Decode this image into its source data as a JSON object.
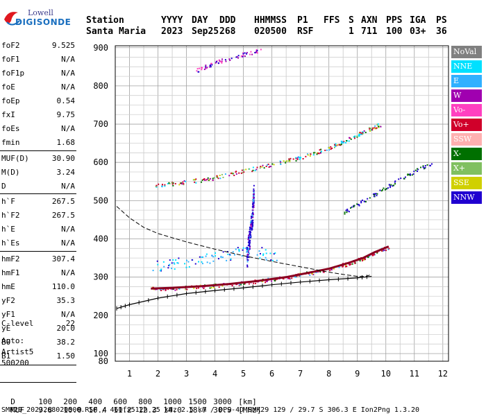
{
  "logo": {
    "brand": "Lowell",
    "name": "DIGISONDE"
  },
  "header": {
    "labels": [
      "Station",
      "YYYY",
      "DAY",
      "DDD",
      "HHMMSS",
      "P1",
      "FFS",
      "S",
      "AXN",
      "PPS",
      "IGA",
      "PS"
    ],
    "values": [
      "Santa Maria",
      "2023",
      "Sep25",
      "268",
      "020500",
      "RSF",
      "1",
      "711",
      "100",
      "03+",
      "36"
    ]
  },
  "params": [
    {
      "name": "foF2",
      "value": "9.525"
    },
    {
      "name": "foF1",
      "value": "N/A"
    },
    {
      "name": "foF1p",
      "value": "N/A"
    },
    {
      "name": "foE",
      "value": "N/A"
    },
    {
      "name": "foEp",
      "value": "0.54"
    },
    {
      "name": "fxI",
      "value": "9.75"
    },
    {
      "name": "foEs",
      "value": "N/A"
    },
    {
      "name": "fmin",
      "value": "1.68"
    },
    {
      "name": "MUF(D)",
      "value": "30.90"
    },
    {
      "name": "M(D)",
      "value": "3.24"
    },
    {
      "name": "D",
      "value": "N/A"
    },
    {
      "name": "h`F",
      "value": "267.5"
    },
    {
      "name": "h`F2",
      "value": "267.5"
    },
    {
      "name": "h`E",
      "value": "N/A"
    },
    {
      "name": "h`Es",
      "value": "N/A"
    },
    {
      "name": "hmF2",
      "value": "307.4"
    },
    {
      "name": "hmF1",
      "value": "N/A"
    },
    {
      "name": "hmE",
      "value": "110.0"
    },
    {
      "name": "yF2",
      "value": "35.3"
    },
    {
      "name": "yF1",
      "value": "N/A"
    },
    {
      "name": "yE",
      "value": "20.0"
    },
    {
      "name": "B0",
      "value": "38.2"
    },
    {
      "name": "B1",
      "value": "1.50"
    },
    {
      "name": "C-level",
      "value": "22"
    }
  ],
  "auto": {
    "title": "Auto:",
    "scaler": "Artist5",
    "version": "500200"
  },
  "legend": [
    {
      "label": "NoVal",
      "color": "#808080"
    },
    {
      "label": "NNE",
      "color": "#00e0ff"
    },
    {
      "label": "E",
      "color": "#30b0ff"
    },
    {
      "label": "W",
      "color": "#a000b0"
    },
    {
      "label": "Vo-",
      "color": "#ff40c0"
    },
    {
      "label": "Vo+",
      "color": "#d0002a"
    },
    {
      "label": "SSW",
      "color": "#ffb0b0"
    },
    {
      "label": "X-",
      "color": "#007000"
    },
    {
      "label": "X+",
      "color": "#80c060"
    },
    {
      "label": "SSE",
      "color": "#d0d000"
    },
    {
      "label": "NNW",
      "color": "#2000d0"
    }
  ],
  "footer": {
    "d_label": "D",
    "d_values": [
      "100",
      "200",
      "400",
      "600",
      "800",
      "1000",
      "1500",
      "3000",
      "[km]"
    ],
    "muf_label": "MUF",
    "muf_values": [
      "9.8",
      "10.0",
      "10.4",
      "11.2",
      "12.3",
      "14.0",
      "18.7",
      "30.9",
      "[MHz]"
    ],
    "info": "SMK29_2023268020500.RSF / 460fx512h 25 kHz 2.5 km / DPS-4D SMK29 129 / 29.7 S 306.3 E Ion2Png 1.3.20"
  },
  "chart_data": {
    "type": "scatter",
    "title": "",
    "xlabel": "",
    "ylabel": "",
    "xlim": [
      0.5,
      12.2
    ],
    "ylim": [
      80,
      905
    ],
    "xticks": [
      1,
      2,
      3,
      4,
      5,
      6,
      7,
      8,
      9,
      10,
      11,
      12
    ],
    "yticks": [
      100,
      200,
      300,
      400,
      500,
      600,
      700,
      800,
      900
    ],
    "grid": true,
    "legend_position": "right",
    "traces": [
      {
        "name": "F2 O-mode trace",
        "x": [
          1.75,
          2.5,
          3.5,
          4.5,
          5.5,
          6.5,
          7.2,
          8.0,
          8.6,
          9.2,
          9.6,
          10.1
        ],
        "y": [
          270,
          272,
          276,
          282,
          290,
          300,
          310,
          322,
          335,
          350,
          365,
          380
        ]
      },
      {
        "name": "F2 2-hop trace",
        "x": [
          1.9,
          2.8,
          3.8,
          4.8,
          5.8,
          6.8,
          7.5,
          8.2,
          8.8,
          9.4,
          9.8
        ],
        "y": [
          540,
          548,
          558,
          575,
          592,
          610,
          626,
          645,
          665,
          688,
          700
        ]
      },
      {
        "name": "Extraordinary trace",
        "x": [
          8.5,
          9.2,
          10.0,
          10.8,
          11.6
        ],
        "y": [
          470,
          500,
          535,
          570,
          600
        ]
      },
      {
        "name": "Upper-left trace",
        "x": [
          3.3,
          4.0,
          4.8,
          5.6
        ],
        "y": [
          840,
          862,
          880,
          895
        ]
      },
      {
        "name": "Vertical echo column",
        "x": [
          5.1,
          5.2,
          5.3,
          5.35
        ],
        "y": [
          350,
          400,
          460,
          520
        ]
      },
      {
        "name": "Es echoes",
        "x": [
          2.0,
          3.0,
          4.0,
          5.0,
          6.0
        ],
        "y": [
          330,
          340,
          350,
          370,
          355
        ]
      }
    ],
    "profile": {
      "name": "Electron density profile",
      "x": [
        0.55,
        1.0,
        1.5,
        2.0,
        3.0,
        4.0,
        5.0,
        6.0,
        7.0,
        7.5,
        8.0,
        8.5,
        9.0,
        9.3,
        9.5
      ],
      "y": [
        485,
        455,
        430,
        414,
        392,
        373,
        356,
        341,
        327,
        320,
        313,
        307,
        302,
        302,
        307
      ]
    },
    "virtual_height": {
      "name": "Modeled virtual height",
      "x": [
        0.55,
        1.0,
        2.0,
        3.0,
        4.0,
        5.0,
        6.0,
        7.0,
        8.0,
        9.0,
        9.5
      ],
      "y": [
        218,
        228,
        245,
        257,
        265,
        272,
        280,
        287,
        293,
        298,
        302
      ]
    }
  }
}
